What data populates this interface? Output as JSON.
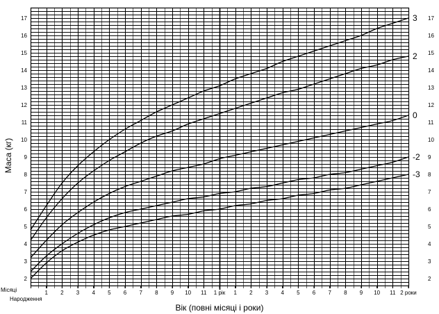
{
  "chart_data": {
    "type": "line",
    "title": "",
    "xlabel": "Вік (повні місяці і роки)",
    "ylabel": "Маса (кг)",
    "xlim": [
      0,
      24
    ],
    "ylim": [
      1.6,
      17.6
    ],
    "grid": true,
    "x_unit_label": "Місяці",
    "x_birth_label": "Народження",
    "x_ticks": [
      {
        "value": 1,
        "label": "1"
      },
      {
        "value": 2,
        "label": "2"
      },
      {
        "value": 3,
        "label": "3"
      },
      {
        "value": 4,
        "label": "4"
      },
      {
        "value": 5,
        "label": "5"
      },
      {
        "value": 6,
        "label": "6"
      },
      {
        "value": 7,
        "label": "7"
      },
      {
        "value": 8,
        "label": "8"
      },
      {
        "value": 9,
        "label": "9"
      },
      {
        "value": 10,
        "label": "10"
      },
      {
        "value": 11,
        "label": "11"
      },
      {
        "value": 12,
        "label": "1 рік"
      },
      {
        "value": 13,
        "label": "1"
      },
      {
        "value": 14,
        "label": "2"
      },
      {
        "value": 15,
        "label": "3"
      },
      {
        "value": 16,
        "label": "4"
      },
      {
        "value": 17,
        "label": "5"
      },
      {
        "value": 18,
        "label": "6"
      },
      {
        "value": 19,
        "label": "7"
      },
      {
        "value": 20,
        "label": "8"
      },
      {
        "value": 21,
        "label": "9"
      },
      {
        "value": 22,
        "label": "10"
      },
      {
        "value": 23,
        "label": "11"
      },
      {
        "value": 24,
        "label": "2 роки"
      }
    ],
    "y_ticks": [
      {
        "value": 2,
        "label": "2"
      },
      {
        "value": 3,
        "label": "3"
      },
      {
        "value": 4,
        "label": "4"
      },
      {
        "value": 5,
        "label": "5"
      },
      {
        "value": 6,
        "label": "6"
      },
      {
        "value": 7,
        "label": "7"
      },
      {
        "value": 8,
        "label": "8"
      },
      {
        "value": 9,
        "label": "9"
      },
      {
        "value": 10,
        "label": "10"
      },
      {
        "value": 11,
        "label": "11"
      },
      {
        "value": 12,
        "label": "12"
      },
      {
        "value": 13,
        "label": "13"
      },
      {
        "value": 14,
        "label": "14"
      },
      {
        "value": 15,
        "label": "15"
      },
      {
        "value": 16,
        "label": "16"
      },
      {
        "value": 17,
        "label": "17"
      }
    ],
    "x": [
      0,
      1,
      2,
      3,
      4,
      5,
      6,
      7,
      8,
      9,
      10,
      11,
      12,
      13,
      14,
      15,
      16,
      17,
      18,
      19,
      20,
      21,
      22,
      23,
      24
    ],
    "series": [
      {
        "name": "3",
        "values": [
          4.8,
          6.2,
          7.5,
          8.5,
          9.3,
          10.0,
          10.6,
          11.1,
          11.6,
          12.0,
          12.4,
          12.8,
          13.1,
          13.5,
          13.8,
          14.1,
          14.5,
          14.8,
          15.1,
          15.4,
          15.7,
          16.0,
          16.4,
          16.7,
          17.0
        ]
      },
      {
        "name": "2",
        "values": [
          4.2,
          5.5,
          6.6,
          7.5,
          8.2,
          8.8,
          9.3,
          9.8,
          10.2,
          10.5,
          10.9,
          11.2,
          11.5,
          11.8,
          12.1,
          12.4,
          12.7,
          12.9,
          13.2,
          13.5,
          13.8,
          14.1,
          14.3,
          14.6,
          14.8
        ]
      },
      {
        "name": "0",
        "values": [
          3.2,
          4.2,
          5.1,
          5.8,
          6.4,
          6.9,
          7.3,
          7.6,
          7.9,
          8.2,
          8.4,
          8.6,
          8.9,
          9.1,
          9.3,
          9.5,
          9.7,
          9.9,
          10.1,
          10.3,
          10.5,
          10.7,
          10.9,
          11.1,
          11.4
        ]
      },
      {
        "name": "-2",
        "values": [
          2.4,
          3.3,
          4.0,
          4.6,
          5.1,
          5.5,
          5.8,
          6.0,
          6.2,
          6.4,
          6.6,
          6.7,
          6.9,
          7.0,
          7.2,
          7.3,
          7.5,
          7.7,
          7.8,
          8.0,
          8.1,
          8.3,
          8.5,
          8.7,
          9.0
        ]
      },
      {
        "name": "-3",
        "values": [
          2.0,
          2.9,
          3.6,
          4.1,
          4.5,
          4.8,
          5.0,
          5.2,
          5.4,
          5.6,
          5.7,
          5.9,
          6.0,
          6.2,
          6.3,
          6.5,
          6.6,
          6.8,
          6.9,
          7.1,
          7.2,
          7.4,
          7.6,
          7.8,
          8.0
        ]
      }
    ]
  }
}
